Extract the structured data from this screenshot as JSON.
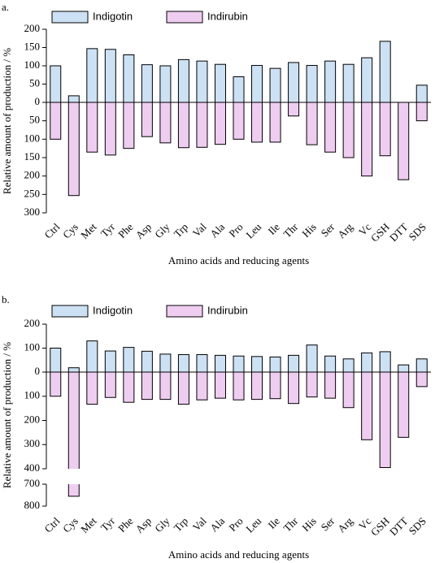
{
  "chart_data": [
    {
      "type": "bar",
      "label": "a.",
      "ylabel": "Relative amount of production / %",
      "xlabel": "Amino acids and reducing agents",
      "categories": [
        "Ctrl",
        "Cys",
        "Met",
        "Tyr",
        "Phe",
        "Asp",
        "Gly",
        "Trp",
        "Val",
        "Ala",
        "Pro",
        "Leu",
        "Ile",
        "Thr",
        "His",
        "Ser",
        "Arg",
        "Vc",
        "GSH",
        "DTT",
        "SDS"
      ],
      "series": [
        {
          "name": "Indigotin",
          "color": "#cde1f4",
          "values": [
            100,
            18,
            147,
            145,
            130,
            103,
            100,
            117,
            113,
            104,
            70,
            101,
            93,
            109,
            101,
            113,
            104,
            122,
            167,
            0,
            47
          ]
        },
        {
          "name": "Indirubin",
          "color": "#efcdf1",
          "axis": "y2",
          "values": [
            100,
            253,
            135,
            143,
            125,
            93,
            110,
            123,
            122,
            114,
            100,
            108,
            108,
            37,
            115,
            135,
            150,
            200,
            145,
            210,
            50
          ]
        }
      ],
      "ylim": [
        0,
        200
      ],
      "yticks": [
        0,
        50,
        100,
        150,
        200
      ],
      "y2lim": [
        0,
        300
      ],
      "y2ticks": [
        50,
        100,
        150,
        200,
        250,
        300
      ],
      "y2_inverted": true
    },
    {
      "type": "bar",
      "label": "b.",
      "ylabel": "Relative amount of production / %",
      "xlabel": "Amino acids and reducing agents",
      "categories": [
        "Ctrl",
        "Cys",
        "Met",
        "Tyr",
        "Phe",
        "Asp",
        "Gly",
        "Trp",
        "Val",
        "Ala",
        "Pro",
        "Leu",
        "Ile",
        "Thr",
        "His",
        "Ser",
        "Arg",
        "Vc",
        "GSH",
        "DTT",
        "SDS"
      ],
      "series": [
        {
          "name": "Indigotin",
          "color": "#cde1f4",
          "values": [
            100,
            18,
            130,
            88,
            103,
            87,
            75,
            73,
            73,
            70,
            67,
            65,
            63,
            70,
            113,
            67,
            55,
            80,
            85,
            30,
            55
          ]
        },
        {
          "name": "Indirubin",
          "color": "#efcdf1",
          "axis": "y2",
          "values": [
            100,
            755,
            133,
            105,
            125,
            113,
            113,
            133,
            115,
            108,
            115,
            113,
            110,
            130,
            103,
            108,
            147,
            280,
            395,
            270,
            60
          ]
        }
      ],
      "ylim": [
        0,
        200
      ],
      "yticks": [
        0,
        100,
        200
      ],
      "y2lim": [
        0,
        800
      ],
      "y2ticks": [
        100,
        200,
        300,
        400,
        700,
        800
      ],
      "y2_inverted": true,
      "y2_break": [
        400,
        700
      ]
    }
  ]
}
